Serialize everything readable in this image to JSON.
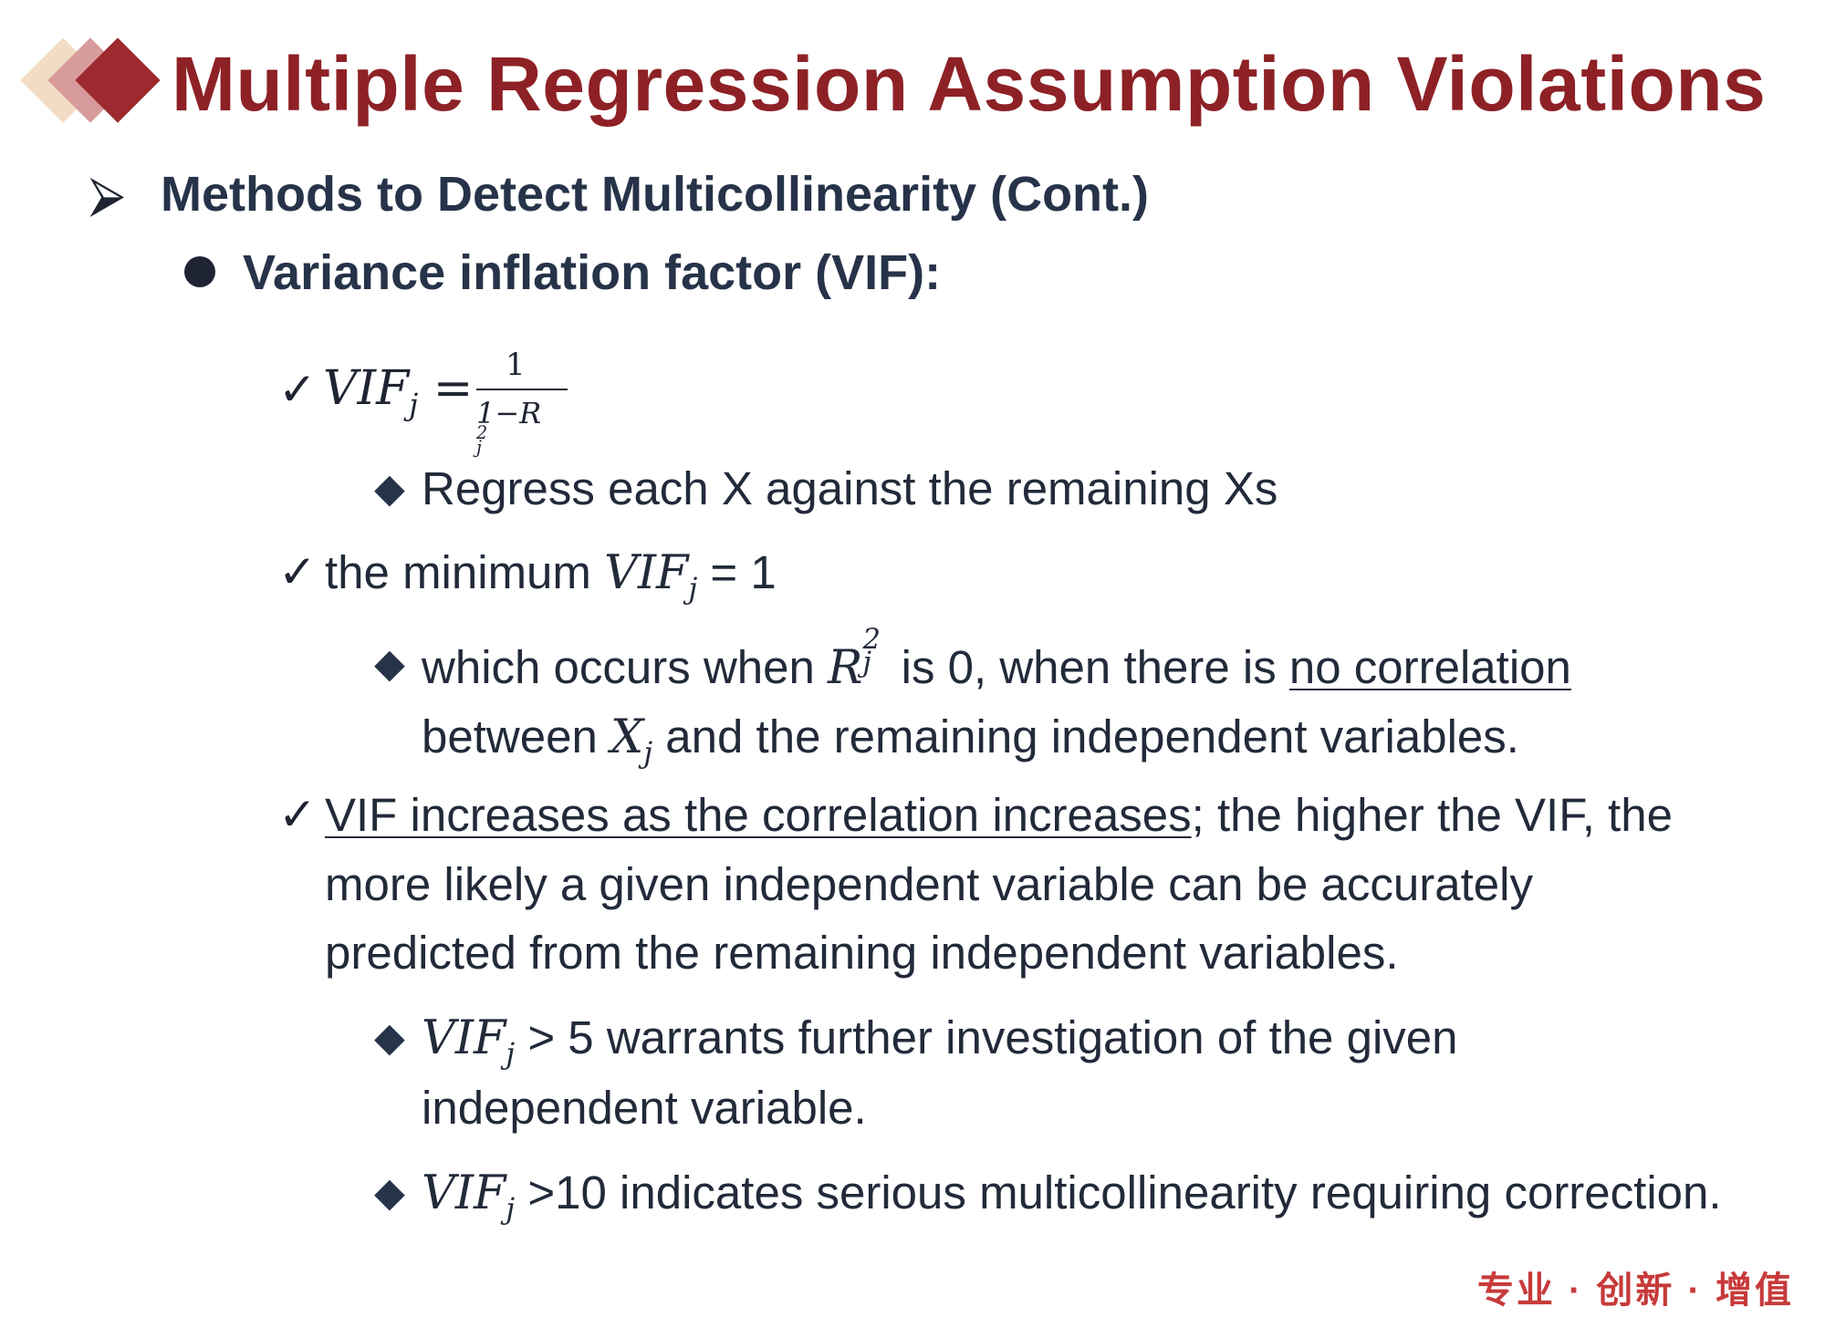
{
  "title": "Multiple Regression Assumption Violations",
  "heading": "Methods to Detect Multicollinearity (Cont.)",
  "subheading": "Variance inflation factor (VIF):",
  "formula": {
    "lhs": "VIF",
    "lhs_sub": "j",
    "equals": "=",
    "numerator": "1",
    "denominator_prefix": "1−R",
    "denominator_sup": "2",
    "denominator_sub": "j"
  },
  "items": {
    "regress": "Regress each X against the remaining Xs",
    "min_prefix": "the minimum ",
    "min_var": "VIF",
    "min_sub": "j",
    "min_suffix": " = 1",
    "occurs_prefix": "which occurs when ",
    "occurs_var": "R",
    "occurs_sup": "2",
    "occurs_sub": "j",
    "occurs_mid": " is 0, when there is ",
    "occurs_underlined": "no correlation",
    "between_prefix": "between ",
    "between_var": "X",
    "between_sub": "j",
    "between_suffix": " and the remaining independent variables.",
    "vif_underlined": "VIF increases as the correlation increases",
    "vif_rest_1": "; the higher the VIF, the",
    "vif_line_2": "more likely a given independent variable can be accurately",
    "vif_line_3": "predicted from the remaining independent variables.",
    "gt5_var": "VIF",
    "gt5_sub": "j",
    "gt5_text": " > 5 warrants further investigation of the given",
    "gt5_line_2": "independent variable.",
    "gt10_var": "VIF",
    "gt10_sub": "j",
    "gt10_text": " >10 indicates serious multicollinearity requiring correction."
  },
  "footer": {
    "part1": "专业",
    "sep": "·",
    "part2": "创新",
    "part3": "增值"
  },
  "colors": {
    "title": "#8d2126",
    "heading": "#263349",
    "footer": "#c73a3a"
  }
}
